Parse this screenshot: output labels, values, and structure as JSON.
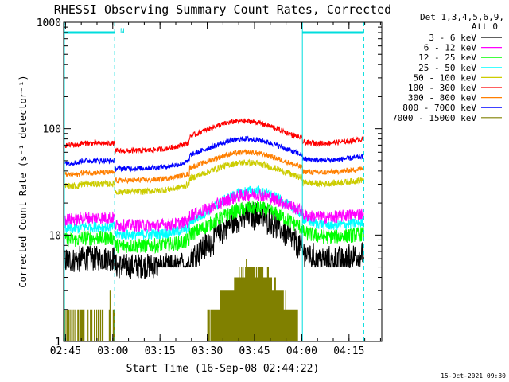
{
  "chart_data": {
    "type": "line",
    "title": "RHESSI Observing Summary Count Rates, Corrected",
    "xlabel": "Start Time (16-Sep-08 02:44:22)",
    "ylabel": "Corrected Count Rate (s⁻¹ detector⁻¹)",
    "x_ticks": [
      "02:45",
      "03:00",
      "03:15",
      "03:30",
      "03:45",
      "04:00",
      "04:15"
    ],
    "x_tick_minutes": [
      0.6,
      15.6,
      30.6,
      45.6,
      60.6,
      75.6,
      90.6
    ],
    "xlim_minutes": [
      0,
      101
    ],
    "y_scale": "log",
    "ylim": [
      1,
      1000
    ],
    "y_ticks": [
      1,
      10,
      100,
      1000
    ],
    "y_tick_labels": [
      "1",
      "10",
      "100",
      "1000"
    ],
    "legend_header": [
      "Det 1,3,4,5,6,9,",
      "Att 0"
    ],
    "legend_position": "right",
    "footer_date": "15-Oct-2021 09:30",
    "annotation_label": "N",
    "night_intervals_minutes": [
      [
        0,
        16.2
      ],
      [
        75.8,
        95.3
      ]
    ],
    "series": [
      {
        "name": "3 - 6 keV",
        "color": "#000000",
        "base": 5.8,
        "peak": 16.5,
        "peak_min": 60.0,
        "sigma": 9,
        "noise": 0.12,
        "floor_start": 30,
        "floor_end": 90,
        "floor": 5
      },
      {
        "name": "6 - 12 keV",
        "color": "#ff00ff",
        "base": 14.0,
        "peak": 24.0,
        "peak_min": 60.0,
        "sigma": 10,
        "noise": 0.06
      },
      {
        "name": "12 - 25 keV",
        "color": "#00ff00",
        "base": 9.0,
        "peak": 18.0,
        "peak_min": 60.0,
        "sigma": 10,
        "noise": 0.07
      },
      {
        "name": "25 - 50 keV",
        "color": "#00ffff",
        "base": 11.5,
        "peak": 26.0,
        "peak_min": 60.0,
        "sigma": 10,
        "noise": 0.05
      },
      {
        "name": "50 - 100 keV",
        "color": "#cccc00",
        "base": 29.0,
        "peak": 48.0,
        "peak_min": 58.0,
        "sigma": 11,
        "noise": 0.03
      },
      {
        "name": "100 - 300 keV",
        "color": "#ff0000",
        "base": 70.0,
        "peak": 118.0,
        "peak_min": 57.0,
        "sigma": 11,
        "noise": 0.025
      },
      {
        "name": "300 - 800 keV",
        "color": "#ff7f00",
        "base": 37.0,
        "peak": 60.0,
        "peak_min": 58.0,
        "sigma": 11,
        "noise": 0.025
      },
      {
        "name": "800 - 7000 keV",
        "color": "#0000ff",
        "base": 48.0,
        "peak": 80.0,
        "peak_min": 58.0,
        "sigma": 11,
        "noise": 0.025
      },
      {
        "name": "7000 - 15000 keV",
        "color": "#808000",
        "base": 1.0,
        "peak": 5.0,
        "peak_min": 60.0,
        "sigma": 7,
        "noise": 0
      }
    ]
  }
}
